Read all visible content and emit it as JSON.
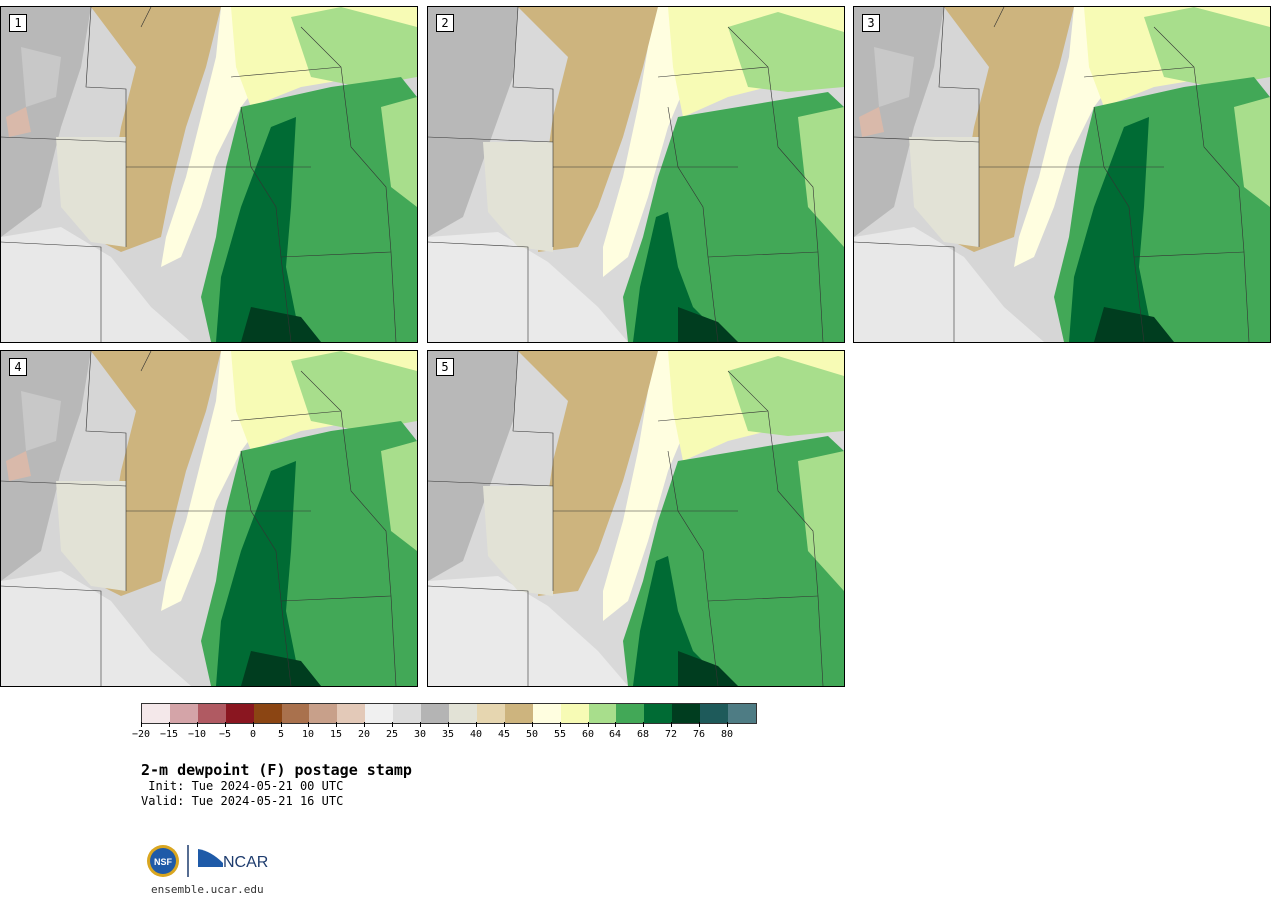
{
  "title": "2-m dewpoint (F) postage stamp",
  "init": " Init: Tue 2024-05-21 00 UTC",
  "valid": "Valid: Tue 2024-05-21 16 UTC",
  "credit": "ensemble.ucar.edu",
  "logos": {
    "nsf": "NSF",
    "ncar": "NCAR"
  },
  "panels": [
    {
      "label": "1"
    },
    {
      "label": "2"
    },
    {
      "label": "3"
    },
    {
      "label": "4"
    },
    {
      "label": "5"
    }
  ],
  "colorbar": {
    "colors": [
      "#f4e8ea",
      "#d4a4a8",
      "#b05a62",
      "#8a1620",
      "#8b4513",
      "#a9714d",
      "#c8a08a",
      "#e3c9b8",
      "#f0f0f0",
      "#dcdcdc",
      "#b4b4b4",
      "#e2e2d6",
      "#e6d6b0",
      "#cdb47e",
      "#fffee0",
      "#f7fbb5",
      "#a8de8c",
      "#42a857",
      "#006b34",
      "#003d1f",
      "#1e5a5a",
      "#4e7c84"
    ],
    "tick_labels": [
      "−20",
      "−15",
      "−10",
      "−5",
      "0",
      "5",
      "10",
      "15",
      "20",
      "25",
      "30",
      "35",
      "40",
      "45",
      "50",
      "55",
      "60",
      "64",
      "68",
      "72",
      "76",
      "80"
    ]
  }
}
